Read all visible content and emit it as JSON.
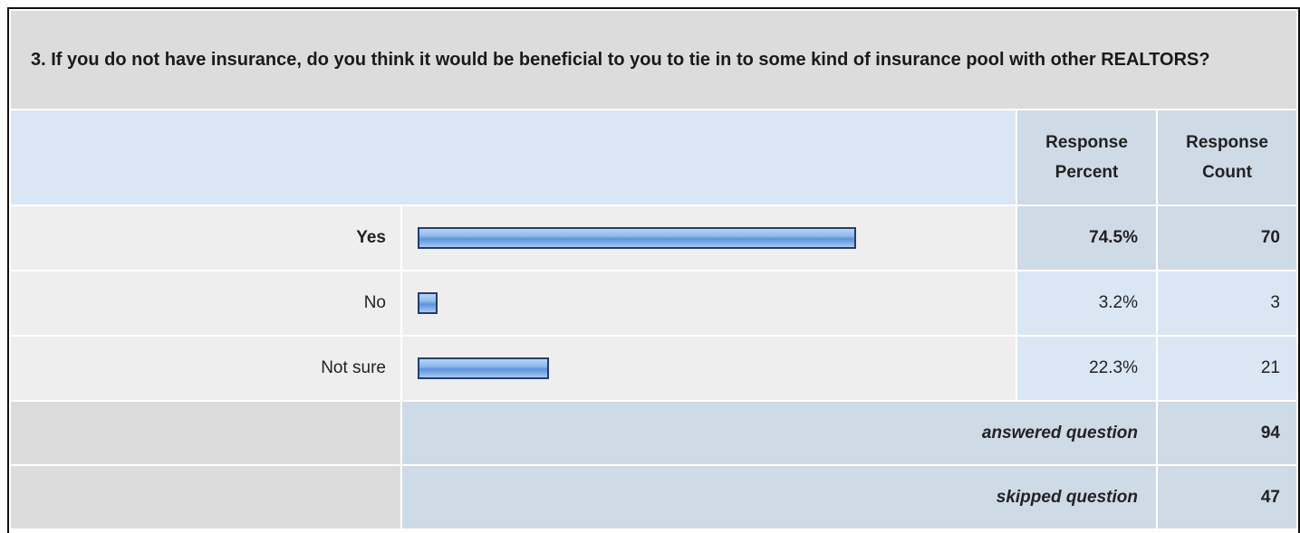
{
  "question": {
    "title": "3. If you do not have insurance, do you think it would be beneficial to you to tie in to some kind of insurance pool with other REALTORS?"
  },
  "header": {
    "response_percent": "Response\nPercent",
    "response_percent_line1": "Response",
    "response_percent_line2": "Percent",
    "response_count_line1": "Response",
    "response_count_line2": "Count"
  },
  "rows": [
    {
      "label": "Yes",
      "percent": "74.5%",
      "count": "70",
      "fraction": 0.745,
      "highlight": true
    },
    {
      "label": "No",
      "percent": "3.2%",
      "count": "3",
      "fraction": 0.032,
      "highlight": false
    },
    {
      "label": "Not sure",
      "percent": "22.3%",
      "count": "21",
      "fraction": 0.223,
      "highlight": false
    }
  ],
  "summary": {
    "answered_label": "answered question",
    "answered_value": "94",
    "skipped_label": "skipped question",
    "skipped_value": "47"
  },
  "colors": {
    "bar_border": "#1f3f6e",
    "bar_fill": "#7ea9e6",
    "header_bg": "#cfdae7",
    "light_blue_bg": "#dbe6f4",
    "gray_bg": "#dcdcdc"
  }
}
